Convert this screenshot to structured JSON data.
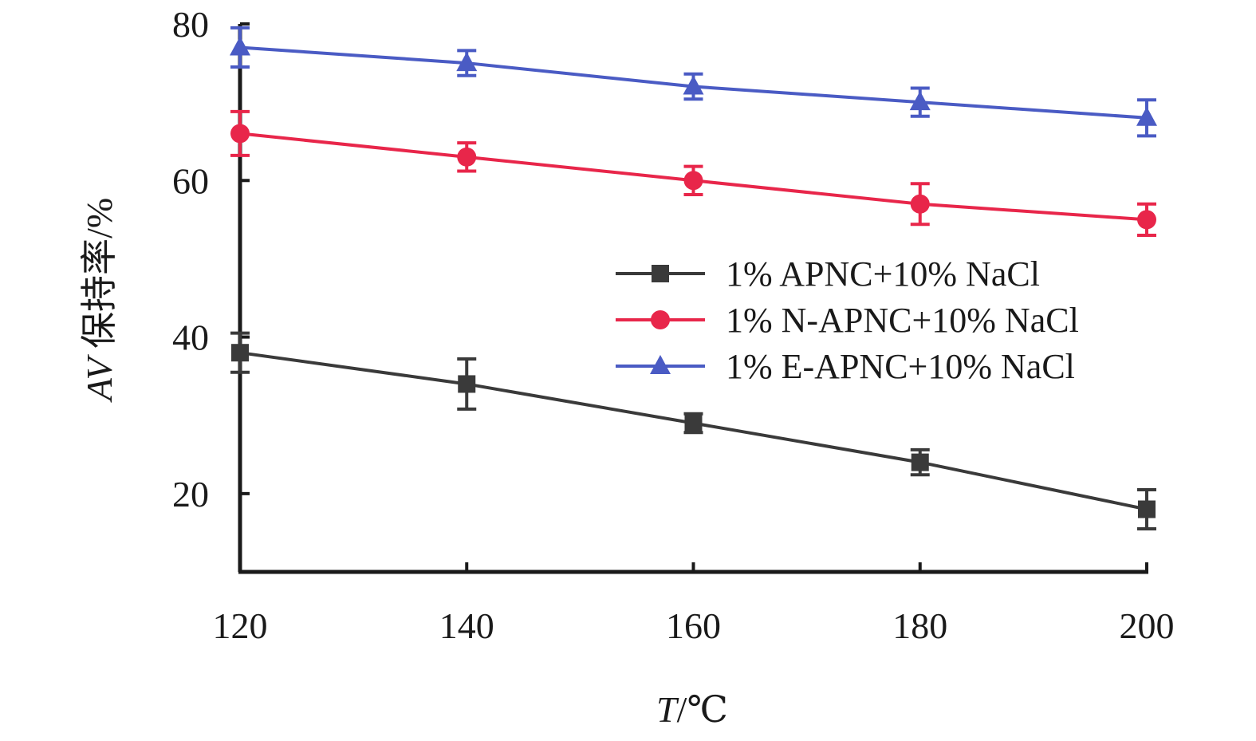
{
  "chart_data": {
    "type": "line",
    "x": [
      120,
      140,
      160,
      180,
      200
    ],
    "xlabel_var": "T",
    "xlabel_unit": "/℃",
    "ylabel_var": "AV",
    "ylabel_text": " 保持率/%",
    "xlim": [
      120,
      200
    ],
    "ylim": [
      10,
      80
    ],
    "xticks": [
      120,
      140,
      160,
      180,
      200
    ],
    "yticks": [
      20,
      40,
      60,
      80
    ],
    "grid": false,
    "legend_position": "center-right",
    "series": [
      {
        "name": "1% APNC+10% NaCl",
        "color": "#3a3a3a",
        "marker": "square",
        "values": [
          38,
          34,
          29,
          24,
          18
        ],
        "errors": [
          2.5,
          3.2,
          1.2,
          1.6,
          2.5
        ]
      },
      {
        "name": "1% N-APNC+10% NaCl",
        "color": "#e8264a",
        "marker": "circle",
        "values": [
          66,
          63,
          60,
          57,
          55
        ],
        "errors": [
          2.8,
          1.8,
          1.8,
          2.6,
          2.0
        ]
      },
      {
        "name": "1% E-APNC+10% NaCl",
        "color": "#4a5bc4",
        "marker": "triangle",
        "values": [
          77,
          75,
          72,
          70,
          68
        ],
        "errors": [
          2.5,
          1.6,
          1.6,
          1.8,
          2.3
        ]
      }
    ]
  }
}
